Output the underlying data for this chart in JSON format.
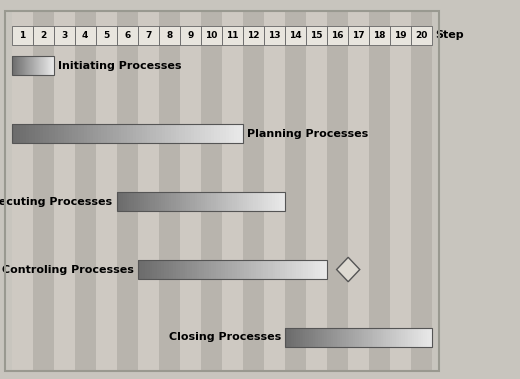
{
  "steps": 20,
  "bg_color": "#c8c5be",
  "stripe_odd": "#cec9c2",
  "stripe_even": "#b8b4ad",
  "header_fill": "#e8e5de",
  "header_edge": "#666666",
  "processes": [
    {
      "name": "Initiating Processes",
      "start": 1,
      "end": 2,
      "label_side": "right",
      "row": 4.3
    },
    {
      "name": "Planning Processes",
      "start": 1,
      "end": 11,
      "label_side": "right",
      "row": 3.3
    },
    {
      "name": "Executing Processes",
      "start": 6,
      "end": 13,
      "label_side": "left",
      "row": 2.3
    },
    {
      "name": "Controling Processes",
      "start": 7,
      "end": 15,
      "label_side": "left",
      "row": 1.3,
      "diamond": 16.5
    },
    {
      "name": "Closing Processes",
      "start": 14,
      "end": 20,
      "label_side": "left",
      "row": 0.3
    }
  ],
  "step_label": "Step",
  "bar_height": 0.28,
  "label_fontsize": 8,
  "step_fontsize": 6.5,
  "step_label_fontsize": 8
}
